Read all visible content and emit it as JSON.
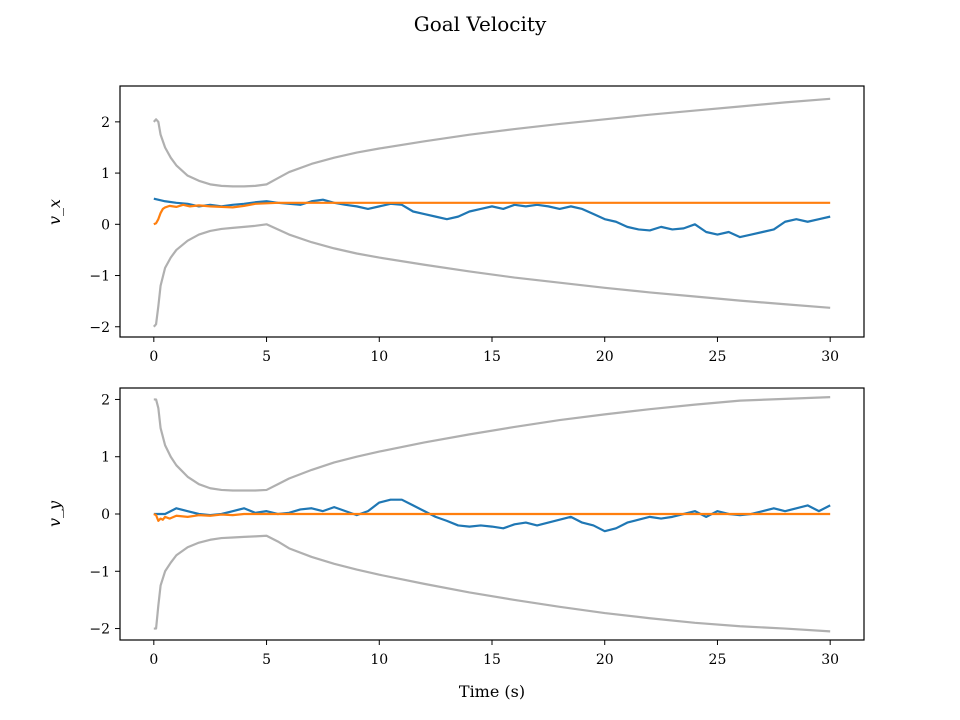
{
  "figure": {
    "title": "Goal Velocity",
    "xlabel": "Time (s)"
  },
  "chart_data": [
    {
      "type": "line",
      "ylabel": "v_x",
      "xlim": [
        -1.5,
        31.5
      ],
      "ylim": [
        -2.2,
        2.7
      ],
      "xticks": [
        0,
        5,
        10,
        15,
        20,
        25,
        30
      ],
      "xtick_labels": [
        "0",
        "5",
        "10",
        "15",
        "20",
        "25",
        "30"
      ],
      "yticks": [
        -2,
        -1,
        0,
        1,
        2
      ],
      "ytick_labels": [
        "−2",
        "−1",
        "0",
        "1",
        "2"
      ],
      "grid": false,
      "colors": {
        "measured": "#1f77b4",
        "goal": "#ff7f0e",
        "bounds": "#b0b0b0"
      },
      "series": [
        {
          "role": "upper-bound",
          "x": [
            0,
            0.1,
            0.2,
            0.3,
            0.5,
            0.75,
            1,
            1.5,
            2,
            2.5,
            3,
            3.5,
            4,
            4.5,
            5,
            5.5,
            6,
            7,
            8,
            9,
            10,
            12,
            14,
            16,
            18,
            20,
            22,
            24,
            26,
            28,
            30
          ],
          "y": [
            2.0,
            2.05,
            2.0,
            1.75,
            1.5,
            1.3,
            1.15,
            0.95,
            0.85,
            0.78,
            0.75,
            0.74,
            0.74,
            0.75,
            0.78,
            0.9,
            1.02,
            1.18,
            1.3,
            1.4,
            1.48,
            1.62,
            1.75,
            1.86,
            1.96,
            2.05,
            2.14,
            2.22,
            2.3,
            2.38,
            2.45
          ]
        },
        {
          "role": "lower-bound",
          "x": [
            0,
            0.1,
            0.2,
            0.3,
            0.5,
            0.75,
            1,
            1.5,
            2,
            2.5,
            3,
            3.5,
            4,
            4.5,
            5,
            5.5,
            6,
            7,
            8,
            9,
            10,
            12,
            14,
            16,
            18,
            20,
            22,
            24,
            26,
            28,
            30
          ],
          "y": [
            -2.0,
            -1.95,
            -1.6,
            -1.2,
            -0.85,
            -0.65,
            -0.5,
            -0.32,
            -0.2,
            -0.13,
            -0.09,
            -0.07,
            -0.05,
            -0.03,
            0.0,
            -0.1,
            -0.2,
            -0.35,
            -0.47,
            -0.57,
            -0.65,
            -0.79,
            -0.92,
            -1.04,
            -1.14,
            -1.24,
            -1.33,
            -1.41,
            -1.49,
            -1.56,
            -1.63
          ]
        },
        {
          "role": "goal",
          "x": [
            0,
            0.1,
            0.2,
            0.3,
            0.4,
            0.5,
            0.7,
            1,
            1.3,
            1.6,
            2,
            2.5,
            3,
            3.5,
            4,
            4.5,
            5,
            5.5,
            6,
            8,
            10,
            15,
            20,
            25,
            30
          ],
          "y": [
            0.0,
            0.02,
            0.1,
            0.22,
            0.3,
            0.33,
            0.36,
            0.34,
            0.38,
            0.35,
            0.37,
            0.35,
            0.34,
            0.33,
            0.36,
            0.4,
            0.41,
            0.42,
            0.42,
            0.42,
            0.42,
            0.42,
            0.42,
            0.42,
            0.42
          ]
        },
        {
          "role": "measured",
          "x": [
            0,
            0.5,
            1,
            1.5,
            2,
            2.5,
            3,
            3.5,
            4,
            4.5,
            5,
            5.5,
            6,
            6.5,
            7,
            7.5,
            8,
            8.5,
            9,
            9.5,
            10,
            10.5,
            11,
            11.5,
            12,
            12.5,
            13,
            13.5,
            14,
            14.5,
            15,
            15.5,
            16,
            16.5,
            17,
            17.5,
            18,
            18.5,
            19,
            19.5,
            20,
            20.5,
            21,
            21.5,
            22,
            22.5,
            23,
            23.5,
            24,
            24.5,
            25,
            25.5,
            26,
            26.5,
            27,
            27.5,
            28,
            28.5,
            29,
            29.5,
            30
          ],
          "y": [
            0.5,
            0.45,
            0.42,
            0.4,
            0.35,
            0.38,
            0.35,
            0.38,
            0.4,
            0.43,
            0.45,
            0.42,
            0.4,
            0.38,
            0.45,
            0.48,
            0.42,
            0.38,
            0.35,
            0.3,
            0.35,
            0.4,
            0.38,
            0.25,
            0.2,
            0.15,
            0.1,
            0.15,
            0.25,
            0.3,
            0.35,
            0.3,
            0.38,
            0.35,
            0.38,
            0.35,
            0.3,
            0.35,
            0.3,
            0.2,
            0.1,
            0.05,
            -0.05,
            -0.1,
            -0.12,
            -0.05,
            -0.1,
            -0.08,
            0.0,
            -0.15,
            -0.2,
            -0.15,
            -0.25,
            -0.2,
            -0.15,
            -0.1,
            0.05,
            0.1,
            0.05,
            0.1,
            0.15
          ]
        }
      ]
    },
    {
      "type": "line",
      "ylabel": "v_y",
      "xlim": [
        -1.5,
        31.5
      ],
      "ylim": [
        -2.2,
        2.2
      ],
      "xticks": [
        0,
        5,
        10,
        15,
        20,
        25,
        30
      ],
      "xtick_labels": [
        "0",
        "5",
        "10",
        "15",
        "20",
        "25",
        "30"
      ],
      "yticks": [
        -2,
        -1,
        0,
        1,
        2
      ],
      "ytick_labels": [
        "−2",
        "−1",
        "0",
        "1",
        "2"
      ],
      "grid": false,
      "colors": {
        "measured": "#1f77b4",
        "goal": "#ff7f0e",
        "bounds": "#b0b0b0"
      },
      "series": [
        {
          "role": "upper-bound",
          "x": [
            0,
            0.1,
            0.2,
            0.3,
            0.5,
            0.75,
            1,
            1.5,
            2,
            2.5,
            3,
            3.5,
            4,
            4.5,
            5,
            5.5,
            6,
            7,
            8,
            9,
            10,
            12,
            14,
            16,
            18,
            20,
            22,
            24,
            26,
            28,
            30
          ],
          "y": [
            2.0,
            2.0,
            1.85,
            1.5,
            1.2,
            1.0,
            0.85,
            0.65,
            0.52,
            0.45,
            0.42,
            0.41,
            0.41,
            0.41,
            0.42,
            0.52,
            0.62,
            0.77,
            0.9,
            1.0,
            1.09,
            1.25,
            1.39,
            1.52,
            1.64,
            1.74,
            1.83,
            1.91,
            1.98,
            2.01,
            2.04
          ]
        },
        {
          "role": "lower-bound",
          "x": [
            0,
            0.1,
            0.2,
            0.3,
            0.5,
            0.75,
            1,
            1.5,
            2,
            2.5,
            3,
            3.5,
            4,
            4.5,
            5,
            5.5,
            6,
            7,
            8,
            9,
            10,
            12,
            14,
            16,
            18,
            20,
            22,
            24,
            26,
            28,
            30
          ],
          "y": [
            -2.0,
            -2.0,
            -1.6,
            -1.25,
            -1.0,
            -0.85,
            -0.72,
            -0.58,
            -0.5,
            -0.45,
            -0.42,
            -0.41,
            -0.4,
            -0.39,
            -0.38,
            -0.48,
            -0.6,
            -0.75,
            -0.87,
            -0.97,
            -1.06,
            -1.22,
            -1.37,
            -1.5,
            -1.62,
            -1.73,
            -1.82,
            -1.9,
            -1.96,
            -2.0,
            -2.05
          ]
        },
        {
          "role": "goal",
          "x": [
            0,
            0.1,
            0.2,
            0.3,
            0.4,
            0.5,
            0.7,
            1,
            1.5,
            2,
            2.5,
            3,
            3.5,
            4,
            4.5,
            5,
            6,
            10,
            15,
            20,
            25,
            30
          ],
          "y": [
            0.0,
            -0.02,
            -0.12,
            -0.08,
            -0.1,
            -0.05,
            -0.08,
            -0.03,
            -0.05,
            -0.02,
            -0.03,
            -0.01,
            -0.02,
            0.0,
            0.0,
            0.0,
            0.0,
            0.0,
            0.0,
            0.0,
            0.0,
            0.0
          ]
        },
        {
          "role": "measured",
          "x": [
            0,
            0.5,
            1,
            1.5,
            2,
            2.5,
            3,
            3.5,
            4,
            4.5,
            5,
            5.5,
            6,
            6.5,
            7,
            7.5,
            8,
            8.5,
            9,
            9.5,
            10,
            10.5,
            11,
            11.5,
            12,
            12.5,
            13,
            13.5,
            14,
            14.5,
            15,
            15.5,
            16,
            16.5,
            17,
            17.5,
            18,
            18.5,
            19,
            19.5,
            20,
            20.5,
            21,
            21.5,
            22,
            22.5,
            23,
            23.5,
            24,
            24.5,
            25,
            25.5,
            26,
            26.5,
            27,
            27.5,
            28,
            28.5,
            29,
            29.5,
            30
          ],
          "y": [
            0.0,
            0.0,
            0.1,
            0.05,
            0.0,
            -0.02,
            0.0,
            0.05,
            0.1,
            0.02,
            0.05,
            0.0,
            0.02,
            0.08,
            0.1,
            0.05,
            0.12,
            0.05,
            -0.02,
            0.05,
            0.2,
            0.25,
            0.25,
            0.15,
            0.05,
            -0.05,
            -0.12,
            -0.2,
            -0.22,
            -0.2,
            -0.22,
            -0.25,
            -0.18,
            -0.15,
            -0.2,
            -0.15,
            -0.1,
            -0.05,
            -0.15,
            -0.2,
            -0.3,
            -0.25,
            -0.15,
            -0.1,
            -0.05,
            -0.08,
            -0.05,
            0.0,
            0.05,
            -0.05,
            0.05,
            0.0,
            -0.02,
            0.0,
            0.05,
            0.1,
            0.05,
            0.1,
            0.15,
            0.05,
            0.15
          ]
        }
      ]
    }
  ]
}
